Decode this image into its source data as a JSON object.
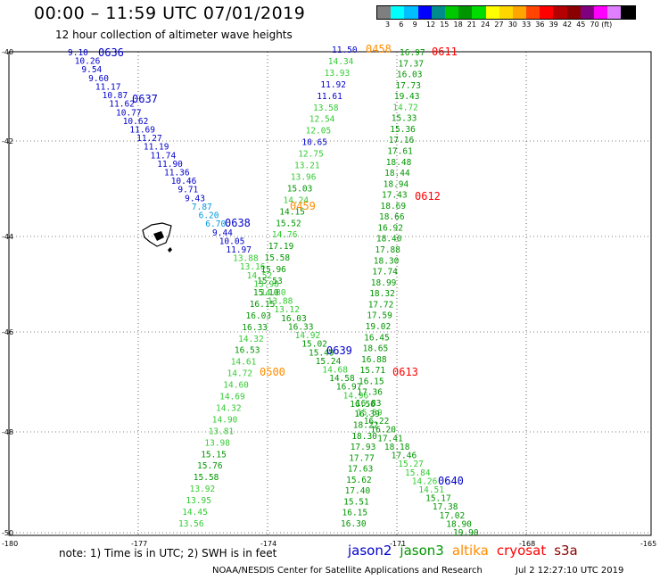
{
  "title": "00:00 – 11:59 UTC 07/01/2019",
  "subtitle": "12 hour collection of altimeter wave heights",
  "colorbar": {
    "colors": [
      "#7f7f7f",
      "#00ffff",
      "#00bfff",
      "#0000ff",
      "#008c8c",
      "#00c800",
      "#009600",
      "#00dc00",
      "#ffff00",
      "#ffd700",
      "#ffa500",
      "#ff4500",
      "#ff0000",
      "#b40000",
      "#8b0000",
      "#800080",
      "#ff00ff",
      "#e080ff",
      "#000000"
    ],
    "ticks": [
      "3",
      "6",
      "9",
      "12",
      "15",
      "18",
      "21",
      "24",
      "27",
      "30",
      "33",
      "36",
      "39",
      "42",
      "45",
      "70 (ft)"
    ]
  },
  "axes": {
    "y_labels": [
      "-40",
      "-42",
      "-44",
      "-46",
      "-48",
      "-50"
    ],
    "x_labels": [
      "-180",
      "-177",
      "-174",
      "-171",
      "-168",
      "-165"
    ]
  },
  "map_colors": {
    "jason2": "#0000cc",
    "jason3": "#009600",
    "altika": "#ff8c00",
    "cryosat": "#ff0000",
    "s3a": "#8b0000",
    "light_green": "#33cc33",
    "cyan": "#0099dd"
  },
  "passes": [
    {
      "text": "0636",
      "color": "jason2"
    },
    {
      "text": "0637",
      "color": "jason2"
    },
    {
      "text": "0638",
      "color": "jason2"
    },
    {
      "text": "0639",
      "color": "jason2"
    },
    {
      "text": "0640",
      "color": "jason2"
    },
    {
      "text": "0458",
      "color": "altika"
    },
    {
      "text": "0459",
      "color": "altika"
    },
    {
      "text": "0500",
      "color": "altika"
    },
    {
      "text": "0611",
      "color": "cryosat"
    },
    {
      "text": "0612",
      "color": "cryosat"
    },
    {
      "text": "0613",
      "color": "cryosat"
    }
  ],
  "track_a": {
    "values": [
      "9.10",
      "10.26",
      "9.54",
      "9.60",
      "11.17",
      "10.87",
      "11.62",
      "10.77",
      "10.62",
      "11.69",
      "11.27",
      "11.19",
      "11.74",
      "11.90",
      "11.36",
      "10.46",
      "9.71",
      "9.43",
      "7.87",
      "6.20",
      "6.70",
      "9.44",
      "10.05",
      "11.97",
      "13.88",
      "13.16",
      "14.52",
      "13.98",
      "14.80",
      "13.88",
      "13.12",
      "16.03",
      "16.33",
      "14.92",
      "15.02",
      "15.49",
      "15.24",
      "14.68",
      "14.58",
      "16.97",
      "14.96",
      "16.56",
      "15.59",
      "16.22",
      "16.20",
      "17.41",
      "18.18",
      "17.46",
      "15.27",
      "15.84",
      "14.26",
      "14.51",
      "15.17",
      "17.38",
      "17.02",
      "18.90",
      "19.90"
    ],
    "colors": [
      "jason2",
      "jason2",
      "jason2",
      "jason2",
      "jason2",
      "jason2",
      "jason2",
      "jason2",
      "jason2",
      "jason2",
      "jason2",
      "jason2",
      "jason2",
      "jason2",
      "jason2",
      "jason2",
      "jason2",
      "jason2",
      "cyan",
      "cyan",
      "cyan",
      "jason2",
      "jason2",
      "jason2",
      "light_green",
      "light_green",
      "light_green",
      "light_green",
      "light_green",
      "light_green",
      "light_green",
      "jason3",
      "jason3",
      "light_green",
      "jason3",
      "jason3",
      "jason3",
      "light_green",
      "jason3",
      "jason3",
      "light_green",
      "jason3",
      "light_green",
      "jason3",
      "jason3",
      "jason3",
      "jason3",
      "jason3",
      "light_green",
      "light_green",
      "light_green",
      "light_green",
      "jason3",
      "jason3",
      "jason3",
      "jason3",
      "jason3"
    ]
  },
  "track_b": {
    "values": [
      "11.50",
      "14.34",
      "13.93",
      "11.92",
      "11.61",
      "13.58",
      "12.54",
      "12.05",
      "10.65",
      "12.75",
      "13.21",
      "13.96",
      "15.03",
      "14.24",
      "14.15",
      "15.52",
      "14.76",
      "17.19",
      "15.58",
      "15.96",
      "15.53",
      "15.10",
      "16.15",
      "16.03",
      "16.33",
      "14.32",
      "16.53",
      "14.61",
      "14.72",
      "14.60",
      "14.69",
      "14.32",
      "14.90",
      "13.81",
      "13.98",
      "15.15",
      "15.76",
      "15.58",
      "13.92",
      "13.95",
      "14.45",
      "13.56"
    ],
    "colors": [
      "jason2",
      "light_green",
      "light_green",
      "jason2",
      "jason2",
      "light_green",
      "light_green",
      "light_green",
      "jason2",
      "light_green",
      "light_green",
      "light_green",
      "jason3",
      "light_green",
      "jason3",
      "jason3",
      "light_green",
      "jason3",
      "jason3",
      "jason3",
      "jason3",
      "jason3",
      "jason3",
      "jason3",
      "jason3",
      "light_green",
      "jason3",
      "light_green",
      "light_green",
      "light_green",
      "light_green",
      "light_green",
      "light_green",
      "light_green",
      "light_green",
      "jason3",
      "jason3",
      "jason3",
      "light_green",
      "light_green",
      "light_green",
      "light_green"
    ]
  },
  "track_c": {
    "values": [
      "16.97",
      "17.37",
      "16.03",
      "17.73",
      "19.43",
      "14.72",
      "15.33",
      "15.36",
      "17.16",
      "17.61",
      "18.48",
      "18.44",
      "18.94",
      "17.43",
      "18.69",
      "18.66",
      "16.92",
      "18.40",
      "17.88",
      "18.30",
      "17.74",
      "18.99",
      "18.32",
      "17.72",
      "17.59",
      "19.02",
      "16.45",
      "18.65",
      "16.88",
      "15.71",
      "16.15",
      "17.36",
      "16.83",
      "16.39",
      "18.22",
      "18.30",
      "17.93",
      "17.77",
      "17.63",
      "15.62",
      "17.40",
      "15.51",
      "16.15",
      "16.30"
    ],
    "colors": [
      "jason3",
      "jason3",
      "jason3",
      "jason3",
      "jason3",
      "light_green",
      "jason3",
      "jason3",
      "jason3",
      "jason3",
      "jason3",
      "jason3",
      "jason3",
      "jason3",
      "jason3",
      "jason3",
      "jason3",
      "jason3",
      "jason3",
      "jason3",
      "jason3",
      "jason3",
      "jason3",
      "jason3",
      "jason3",
      "jason3",
      "jason3",
      "jason3",
      "jason3",
      "jason3",
      "jason3",
      "jason3",
      "jason3",
      "jason3",
      "jason3",
      "jason3",
      "jason3",
      "jason3",
      "jason3",
      "jason3",
      "jason3",
      "jason3",
      "jason3",
      "jason3"
    ]
  },
  "note": "note:  1) Time is in UTC;  2) SWH is in feet",
  "satellites": [
    {
      "name": "jason2",
      "color": "jason2"
    },
    {
      "name": "jason3",
      "color": "jason3"
    },
    {
      "name": "altika",
      "color": "altika"
    },
    {
      "name": "cryosat",
      "color": "cryosat"
    },
    {
      "name": "s3a",
      "color": "s3a"
    }
  ],
  "credit": "NOAA/NESDIS Center for Satellite Applications and Research",
  "generated": "Jul  2 12:27:10 UTC 2019"
}
